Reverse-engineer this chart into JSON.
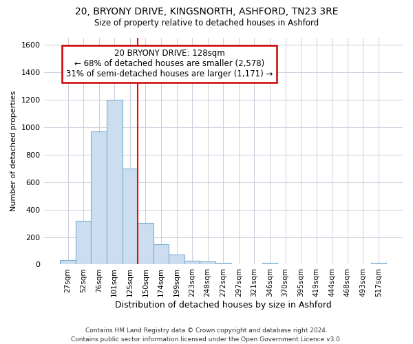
{
  "title1": "20, BRYONY DRIVE, KINGSNORTH, ASHFORD, TN23 3RE",
  "title2": "Size of property relative to detached houses in Ashford",
  "xlabel": "Distribution of detached houses by size in Ashford",
  "ylabel": "Number of detached properties",
  "footnote": "Contains HM Land Registry data © Crown copyright and database right 2024.\nContains public sector information licensed under the Open Government Licence v3.0.",
  "bar_labels": [
    "27sqm",
    "52sqm",
    "76sqm",
    "101sqm",
    "125sqm",
    "150sqm",
    "174sqm",
    "199sqm",
    "223sqm",
    "248sqm",
    "272sqm",
    "297sqm",
    "321sqm",
    "346sqm",
    "370sqm",
    "395sqm",
    "419sqm",
    "444sqm",
    "468sqm",
    "493sqm",
    "517sqm"
  ],
  "bar_values": [
    30,
    320,
    970,
    1200,
    700,
    305,
    150,
    70,
    25,
    20,
    10,
    0,
    0,
    10,
    0,
    0,
    0,
    0,
    0,
    0,
    10
  ],
  "bar_color": "#ccddf0",
  "bar_edge_color": "#7aaed0",
  "ylim": [
    0,
    1650
  ],
  "yticks": [
    0,
    200,
    400,
    600,
    800,
    1000,
    1200,
    1400,
    1600
  ],
  "annotation_line1": "20 BRYONY DRIVE: 128sqm",
  "annotation_line2": "← 68% of detached houses are smaller (2,578)",
  "annotation_line3": "31% of semi-detached houses are larger (1,171) →",
  "annotation_box_color": "#ffffff",
  "annotation_box_edge": "#cc0000",
  "red_line_bin_index": 4,
  "background_color": "#ffffff",
  "grid_color": "#ccccdd"
}
